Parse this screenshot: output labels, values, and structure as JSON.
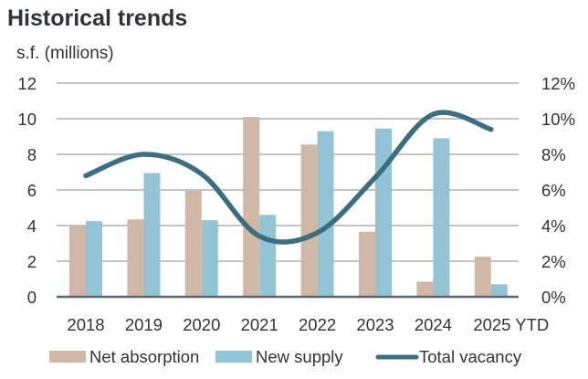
{
  "chart_data": {
    "type": "bar",
    "title": "Historical trends",
    "ylabel": "s.f. (millions)",
    "xlabel": "",
    "categories": [
      "2018",
      "2019",
      "2020",
      "2021",
      "2022",
      "2023",
      "2024",
      "2025 YTD"
    ],
    "ylim": [
      0,
      12
    ],
    "yticks": [
      "0",
      "2",
      "4",
      "6",
      "8",
      "10",
      "12"
    ],
    "y2lim": [
      0,
      12
    ],
    "y2ticks": [
      "0%",
      "2%",
      "4%",
      "6%",
      "8%",
      "10%",
      "12%"
    ],
    "grid": true,
    "legend_position": "bottom",
    "series": [
      {
        "name": "Net absorption",
        "type": "bar",
        "axis": "left",
        "color": "#D1B8A6",
        "values": [
          4.0,
          4.35,
          5.95,
          10.1,
          8.55,
          3.65,
          0.85,
          2.25
        ]
      },
      {
        "name": "New supply",
        "type": "bar",
        "axis": "left",
        "color": "#93C4D6",
        "values": [
          4.25,
          6.95,
          4.3,
          4.6,
          9.3,
          9.45,
          8.9,
          0.7
        ]
      },
      {
        "name": "Total vacancy",
        "type": "line",
        "axis": "right",
        "unit": "%",
        "color": "#3B6E80",
        "smooth": true,
        "values": [
          6.8,
          8.0,
          6.9,
          3.4,
          3.6,
          6.7,
          10.25,
          9.4
        ]
      }
    ]
  }
}
